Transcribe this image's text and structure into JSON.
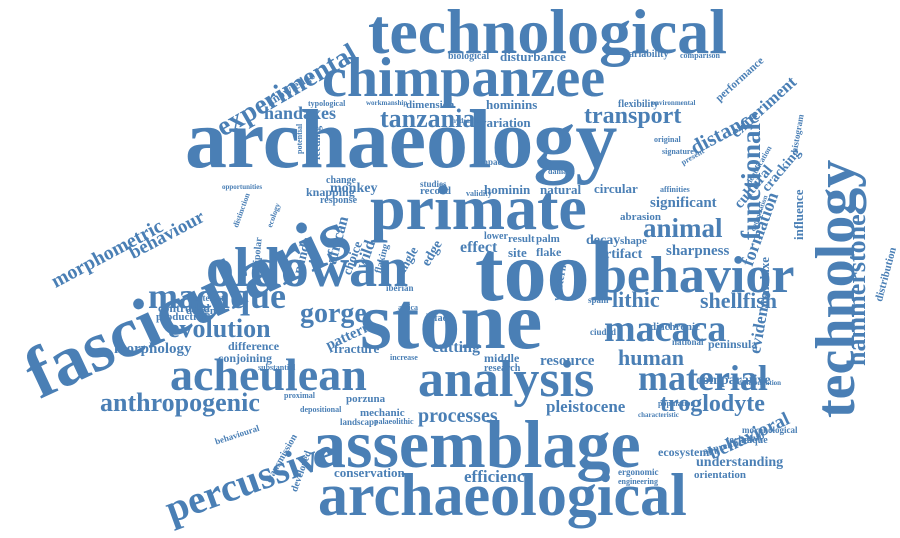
{
  "theme": {
    "word_color": "#4a7fb5",
    "background": "#ffffff"
  },
  "cloud": {
    "words": [
      {
        "text": "technological"
      },
      {
        "text": "chimpanzee"
      },
      {
        "text": "archaeology"
      },
      {
        "text": "primate"
      },
      {
        "text": "tool"
      },
      {
        "text": "stone"
      },
      {
        "text": "behavior"
      },
      {
        "text": "oldowan"
      },
      {
        "text": "fascicularis"
      },
      {
        "text": "assemblage"
      },
      {
        "text": "archaeological"
      },
      {
        "text": "analysis"
      },
      {
        "text": "acheulean"
      },
      {
        "text": "technology"
      },
      {
        "text": "macaque"
      },
      {
        "text": "percussive"
      },
      {
        "text": "experimental"
      },
      {
        "text": "macaca"
      },
      {
        "text": "evolution"
      },
      {
        "text": "material"
      },
      {
        "text": "animal"
      },
      {
        "text": "functional"
      },
      {
        "text": "hammerstone"
      },
      {
        "text": "tanzania"
      },
      {
        "text": "transport"
      },
      {
        "text": "handaxes"
      },
      {
        "text": "gorge"
      },
      {
        "text": "lithic"
      },
      {
        "text": "shellfish"
      },
      {
        "text": "human"
      },
      {
        "text": "anthropogenic"
      },
      {
        "text": "processes"
      },
      {
        "text": "troglodyte"
      },
      {
        "text": "behavioral"
      },
      {
        "text": "morphometric"
      },
      {
        "text": "behaviour"
      },
      {
        "text": "conservation"
      },
      {
        "text": "efficiency"
      },
      {
        "text": "pleistocene"
      },
      {
        "text": "distance"
      },
      {
        "text": "experiment"
      },
      {
        "text": "sharpness"
      },
      {
        "text": "formation"
      },
      {
        "text": "evidence"
      },
      {
        "text": "cultural"
      },
      {
        "text": "cracking"
      },
      {
        "text": "influence"
      },
      {
        "text": "handaxe"
      },
      {
        "text": "cutting"
      },
      {
        "text": "resource"
      },
      {
        "text": "controlled"
      },
      {
        "text": "production"
      },
      {
        "text": "morphology"
      },
      {
        "text": "comparative"
      },
      {
        "text": "understanding"
      },
      {
        "text": "orientation"
      },
      {
        "text": "ecosystem"
      },
      {
        "text": "technique"
      },
      {
        "text": "morphological"
      },
      {
        "text": "distribution"
      },
      {
        "text": "disturbance"
      },
      {
        "text": "biological"
      },
      {
        "text": "variability"
      },
      {
        "text": "comparison"
      },
      {
        "text": "performance"
      },
      {
        "text": "knowledge"
      },
      {
        "text": "hominins"
      },
      {
        "text": "variation"
      },
      {
        "text": "dimension"
      },
      {
        "text": "flexibility"
      },
      {
        "text": "monkey"
      },
      {
        "text": "hominin"
      },
      {
        "text": "natural"
      },
      {
        "text": "circular"
      },
      {
        "text": "significant"
      },
      {
        "text": "abrasion"
      },
      {
        "text": "effect"
      },
      {
        "text": "result"
      },
      {
        "text": "palm"
      },
      {
        "text": "decay"
      },
      {
        "text": "shape"
      },
      {
        "text": "artifact"
      },
      {
        "text": "site"
      },
      {
        "text": "flake"
      },
      {
        "text": "lower"
      },
      {
        "text": "knapping"
      },
      {
        "text": "panda"
      },
      {
        "text": "african"
      },
      {
        "text": "choice"
      },
      {
        "text": "wild"
      },
      {
        "text": "edge"
      },
      {
        "text": "angle"
      },
      {
        "text": "flaking"
      },
      {
        "text": "record"
      },
      {
        "text": "change"
      },
      {
        "text": "response"
      },
      {
        "text": "design"
      },
      {
        "text": "difference"
      },
      {
        "text": "conjoining"
      },
      {
        "text": "fracture"
      },
      {
        "text": "pattern"
      },
      {
        "text": "porzuna"
      },
      {
        "text": "mechanic"
      },
      {
        "text": "landscape"
      },
      {
        "text": "palaeolithic"
      },
      {
        "text": "transmission"
      },
      {
        "text": "developed"
      },
      {
        "text": "behavioural"
      },
      {
        "text": "biface"
      },
      {
        "text": "iberian"
      },
      {
        "text": "artefact"
      },
      {
        "text": "bipolar"
      },
      {
        "text": "peninsula"
      },
      {
        "text": "national"
      },
      {
        "text": "middle"
      },
      {
        "text": "research"
      },
      {
        "text": "western"
      },
      {
        "text": "spain"
      },
      {
        "text": "ciudad"
      },
      {
        "text": "apprenticeship"
      },
      {
        "text": "ergonomic"
      },
      {
        "text": "engineering"
      },
      {
        "text": "diachronic"
      },
      {
        "text": "typological"
      },
      {
        "text": "workmanship"
      },
      {
        "text": "feeding"
      },
      {
        "text": "potential"
      },
      {
        "text": "impact"
      },
      {
        "text": "histogram"
      },
      {
        "text": "present"
      },
      {
        "text": "affinities"
      },
      {
        "text": "identification"
      },
      {
        "text": "optimization"
      },
      {
        "text": "africa"
      },
      {
        "text": "ecology"
      },
      {
        "text": "distinction"
      },
      {
        "text": "opportunities"
      },
      {
        "text": "studies"
      },
      {
        "text": "increase"
      },
      {
        "text": "substantial"
      },
      {
        "text": "depositional"
      },
      {
        "text": "population"
      },
      {
        "text": "characteristic"
      },
      {
        "text": "differentiation"
      },
      {
        "text": "original"
      },
      {
        "text": "signature"
      },
      {
        "text": "environmental"
      },
      {
        "text": "validity"
      },
      {
        "text": "hydraulic"
      },
      {
        "text": "proximal"
      },
      {
        "text": "damage"
      }
    ]
  }
}
